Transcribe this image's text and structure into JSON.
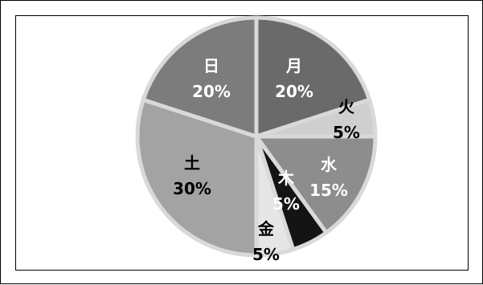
{
  "chart_data": {
    "type": "pie",
    "title": "",
    "start": "top",
    "direction": "clockwise",
    "slices": [
      {
        "name": "月",
        "value": 20,
        "label": "20%",
        "color": "#6a6a6a",
        "label_color": "#ffffff"
      },
      {
        "name": "火",
        "value": 5,
        "label": "5%",
        "color": "#cfcfcf",
        "label_color": "#000000"
      },
      {
        "name": "水",
        "value": 15,
        "label": "15%",
        "color": "#8d8d8d",
        "label_color": "#ffffff"
      },
      {
        "name": "木",
        "value": 5,
        "label": "5%",
        "color": "#141414",
        "label_color": "#ffffff"
      },
      {
        "name": "金",
        "value": 5,
        "label": "5%",
        "color": "#e6e6e6",
        "label_color": "#000000"
      },
      {
        "name": "土",
        "value": 30,
        "label": "30%",
        "color": "#a3a3a3",
        "label_color": "#000000"
      },
      {
        "name": "日",
        "value": 20,
        "label": "20%",
        "color": "#7c7c7c",
        "label_color": "#ffffff"
      }
    ]
  }
}
